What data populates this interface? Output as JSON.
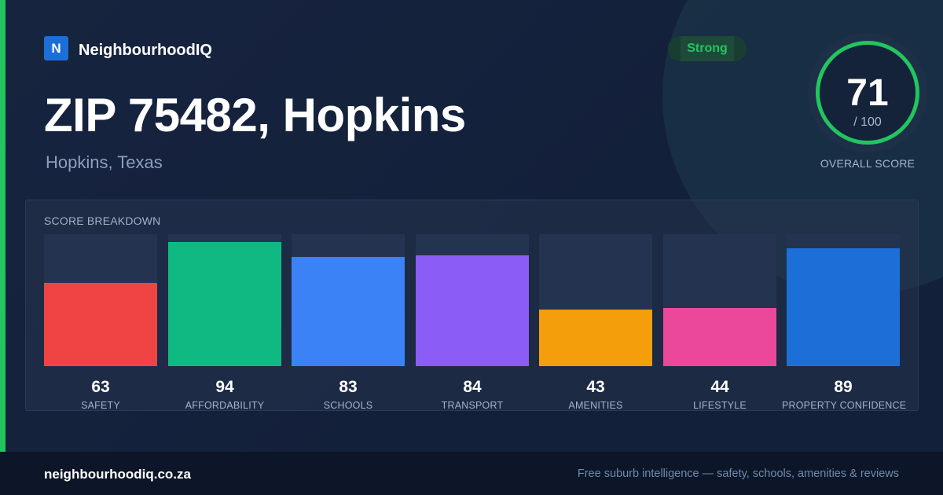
{
  "brand": {
    "logo_letter": "N",
    "name": "NeighbourhoodIQ"
  },
  "header": {
    "title": "ZIP 75482, Hopkins",
    "subtitle": "Hopkins, Texas",
    "badge": "Strong"
  },
  "overall": {
    "score": "71",
    "max": "/ 100",
    "caption": "OVERALL SCORE",
    "ring_color": "#22c55e"
  },
  "breakdown": {
    "title": "SCORE BREAKDOWN"
  },
  "chart_data": {
    "type": "bar",
    "title": "SCORE BREAKDOWN",
    "ylim": [
      0,
      100
    ],
    "categories": [
      "SAFETY",
      "AFFORDABILITY",
      "SCHOOLS",
      "TRANSPORT",
      "AMENITIES",
      "LIFESTYLE",
      "PROPERTY CONFIDENCE"
    ],
    "values": [
      63,
      94,
      83,
      84,
      43,
      44,
      89
    ],
    "colors": [
      "#ef4444",
      "#10b981",
      "#3b82f6",
      "#8b5cf6",
      "#f59e0b",
      "#ec4899",
      "#1d6fd8"
    ]
  },
  "footer": {
    "domain": "neighbourhoodiq.co.za",
    "tagline": "Free suburb intelligence — safety, schools, amenities & reviews"
  },
  "colors": {
    "accent": "#22c55e",
    "background": "#14213a",
    "footer_bg": "#0c1628"
  }
}
